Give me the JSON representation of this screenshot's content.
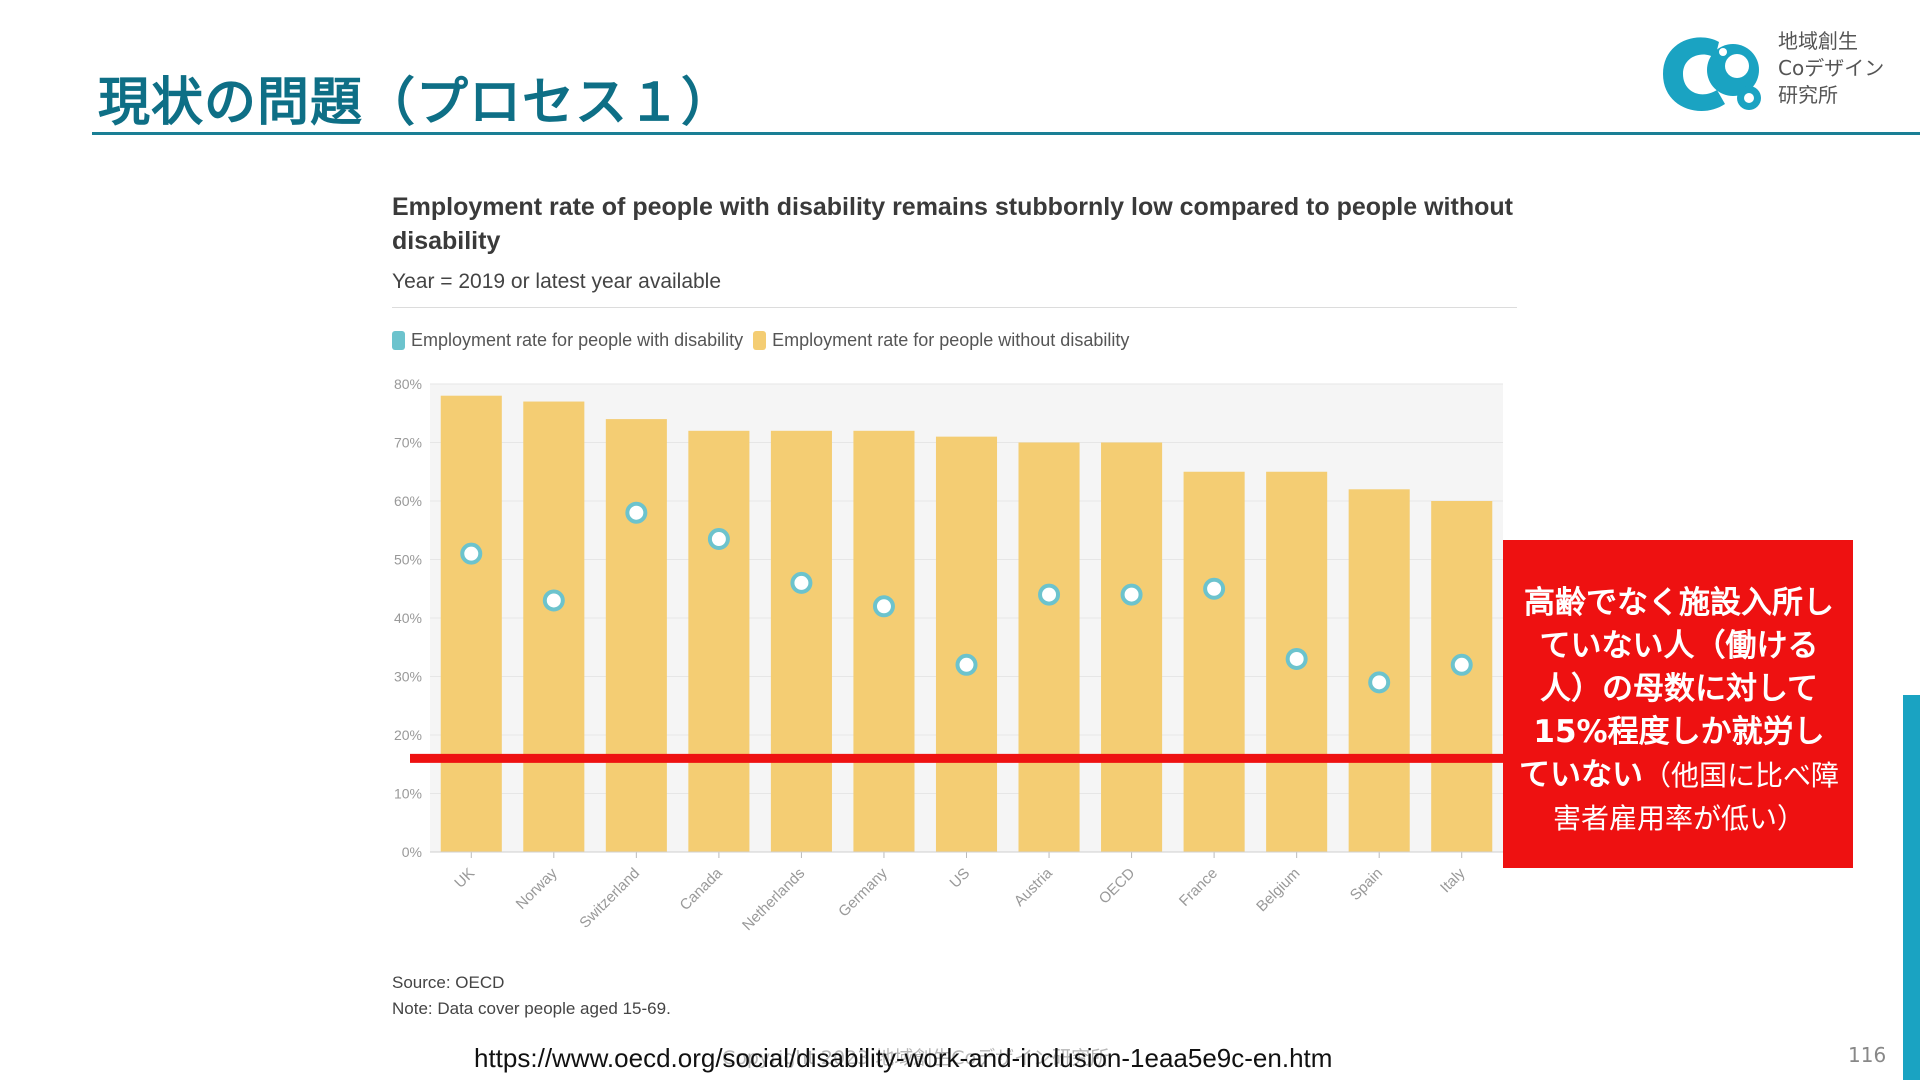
{
  "slide": {
    "title": "現状の問題（プロセス１）",
    "page_number": "116",
    "url": "https://www.oecd.org/social/disability-work-and-inclusion-1eaa5e9c-en.htm",
    "copyright": "Copyright 2023 地域創生Coデザイン研究所"
  },
  "logo": {
    "lines": [
      "地域創生",
      "Coデザイン",
      "研究所"
    ],
    "color": "#1aa3c2"
  },
  "callout": {
    "bold_text": "高齢でなく施設入所していない人（働ける人）の母数に対して15%程度しか就労していない",
    "normal_text": "（他国に比べ障害者雇用率が低い）",
    "color": "#ee1111"
  },
  "chart_data": {
    "type": "bar",
    "title": "Employment rate of people with disability remains stubbornly low compared to people without disability",
    "subtitle": "Year = 2019 or latest year available",
    "categories": [
      "UK",
      "Norway",
      "Switzerland",
      "Canada",
      "Netherlands",
      "Germany",
      "US",
      "Austria",
      "OECD",
      "France",
      "Belgium",
      "Spain",
      "Italy"
    ],
    "series": [
      {
        "name": "Employment rate for people with disability",
        "mark": "point",
        "color": "#6cc3cd",
        "values": [
          51,
          43,
          58,
          53.5,
          46,
          42,
          32,
          44,
          44,
          45,
          33,
          29,
          32
        ]
      },
      {
        "name": "Employment rate for people without disability",
        "mark": "bar",
        "color": "#f4cd73",
        "values": [
          78,
          77,
          74,
          72,
          72,
          72,
          71,
          70,
          70,
          65,
          65,
          62,
          60
        ]
      }
    ],
    "yticks": [
      "0%",
      "10%",
      "20%",
      "30%",
      "40%",
      "50%",
      "60%",
      "70%",
      "80%"
    ],
    "ylim": [
      0,
      80
    ],
    "grid": true,
    "legend_position": "top-left",
    "annotations": [
      {
        "type": "hline",
        "y": 16,
        "color": "#ee1111"
      }
    ],
    "source": "Source: OECD",
    "note": "Note: Data cover people aged 15-69."
  }
}
